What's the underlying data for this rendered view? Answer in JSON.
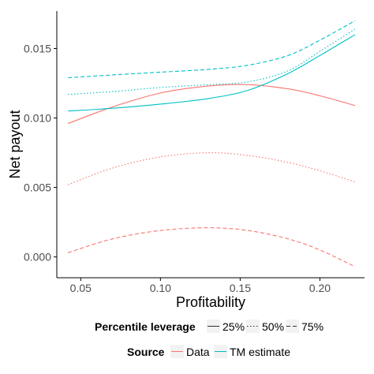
{
  "chart_data": {
    "type": "line",
    "title": "",
    "xlabel": "Profitability",
    "ylabel": "Net payout",
    "xlim": [
      0.035,
      0.228
    ],
    "ylim": [
      -0.0015,
      0.0177
    ],
    "x_ticks": [
      0.05,
      0.1,
      0.15,
      0.2
    ],
    "x_tick_labels": [
      "0.05",
      "0.10",
      "0.15",
      "0.20"
    ],
    "y_ticks": [
      0.0,
      0.005,
      0.01,
      0.015
    ],
    "y_tick_labels": [
      "0.000",
      "0.005",
      "0.010",
      "0.015"
    ],
    "grid": false,
    "legend_placement": "bottom",
    "legend_linetype": {
      "title": "Percentile leverage",
      "entries": [
        {
          "label": "25%",
          "dash": "solid"
        },
        {
          "label": "50%",
          "dash": "dotted"
        },
        {
          "label": "75%",
          "dash": "dashed"
        }
      ]
    },
    "legend_color": {
      "title": "Source",
      "entries": [
        {
          "label": "Data",
          "color": "#F8766D"
        },
        {
          "label": "TM estimate",
          "color": "#00BFC4"
        }
      ]
    },
    "series": [
      {
        "source": "Data",
        "leverage": "25%",
        "color": "#F8766D",
        "dash": "solid",
        "x": [
          0.042,
          0.07,
          0.1,
          0.13,
          0.155,
          0.18,
          0.2,
          0.222
        ],
        "y": [
          0.0096,
          0.0108,
          0.0118,
          0.0123,
          0.0124,
          0.0121,
          0.0116,
          0.0109
        ]
      },
      {
        "source": "Data",
        "leverage": "50%",
        "color": "#F8766D",
        "dash": "dotted",
        "x": [
          0.042,
          0.07,
          0.1,
          0.13,
          0.155,
          0.18,
          0.2,
          0.222
        ],
        "y": [
          0.0052,
          0.0064,
          0.0072,
          0.0075,
          0.0073,
          0.0068,
          0.0062,
          0.0054
        ]
      },
      {
        "source": "Data",
        "leverage": "75%",
        "color": "#F8766D",
        "dash": "dashed",
        "x": [
          0.042,
          0.07,
          0.1,
          0.13,
          0.155,
          0.18,
          0.2,
          0.222
        ],
        "y": [
          0.0003,
          0.0013,
          0.0019,
          0.0021,
          0.0019,
          0.0013,
          0.0005,
          -0.0007
        ]
      },
      {
        "source": "TM estimate",
        "leverage": "25%",
        "color": "#00BFC4",
        "dash": "solid",
        "x": [
          0.042,
          0.07,
          0.1,
          0.13,
          0.155,
          0.18,
          0.2,
          0.222
        ],
        "y": [
          0.0105,
          0.0107,
          0.011,
          0.0114,
          0.012,
          0.0132,
          0.0145,
          0.016
        ]
      },
      {
        "source": "TM estimate",
        "leverage": "50%",
        "color": "#00BFC4",
        "dash": "dotted",
        "x": [
          0.042,
          0.07,
          0.1,
          0.13,
          0.155,
          0.18,
          0.2,
          0.222
        ],
        "y": [
          0.0117,
          0.0119,
          0.0122,
          0.0124,
          0.0126,
          0.0134,
          0.0148,
          0.0164
        ]
      },
      {
        "source": "TM estimate",
        "leverage": "75%",
        "color": "#00BFC4",
        "dash": "dashed",
        "x": [
          0.042,
          0.07,
          0.1,
          0.13,
          0.155,
          0.18,
          0.2,
          0.222
        ],
        "y": [
          0.0129,
          0.0131,
          0.0133,
          0.0135,
          0.0138,
          0.0145,
          0.0156,
          0.017
        ]
      }
    ]
  }
}
